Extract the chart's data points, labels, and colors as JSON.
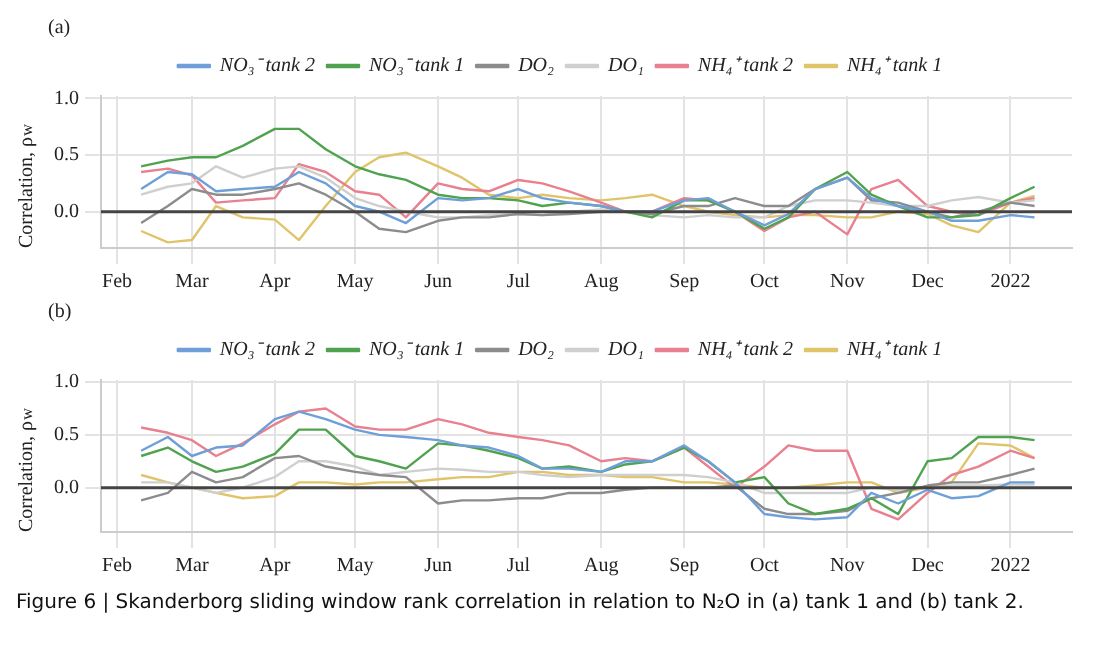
{
  "chart_data": [
    {
      "type": "line",
      "title": "(a)",
      "ylabel": "Correlation, ρ$_{w}$",
      "legend": "top",
      "grid": true,
      "marker": "none",
      "x": [
        "2021-02-10",
        "2021-02-20",
        "2021-03-01",
        "2021-03-10",
        "2021-03-20",
        "2021-04-01",
        "2021-04-10",
        "2021-04-20",
        "2021-05-01",
        "2021-05-10",
        "2021-05-20",
        "2021-06-01",
        "2021-06-10",
        "2021-06-20",
        "2021-07-01",
        "2021-07-10",
        "2021-07-20",
        "2021-08-01",
        "2021-08-10",
        "2021-08-20",
        "2021-09-01",
        "2021-09-10",
        "2021-09-20",
        "2021-10-01",
        "2021-10-10",
        "2021-10-20",
        "2021-11-01",
        "2021-11-10",
        "2021-11-20",
        "2021-12-01",
        "2021-12-10",
        "2021-12-20",
        "2022-01-01",
        "2022-01-10"
      ],
      "xlim": [
        "2021-01-26",
        "2022-01-24"
      ],
      "xticks": [
        {
          "value": "2021-02-01",
          "label": "Feb"
        },
        {
          "value": "2021-03-01",
          "label": "Mar"
        },
        {
          "value": "2021-04-01",
          "label": "Apr"
        },
        {
          "value": "2021-05-01",
          "label": "May"
        },
        {
          "value": "2021-06-01",
          "label": "Jun"
        },
        {
          "value": "2021-07-01",
          "label": "Jul"
        },
        {
          "value": "2021-08-01",
          "label": "Aug"
        },
        {
          "value": "2021-09-01",
          "label": "Sep"
        },
        {
          "value": "2021-10-01",
          "label": "Oct"
        },
        {
          "value": "2021-11-01",
          "label": "Nov"
        },
        {
          "value": "2021-12-01",
          "label": "Dec"
        },
        {
          "value": "2022-01-01",
          "label": "2022"
        }
      ],
      "ylim": [
        -0.32,
        1.02
      ],
      "yticks": [
        {
          "value": 0,
          "label": "0.0"
        },
        {
          "value": 0.5,
          "label": "0.5"
        },
        {
          "value": 1,
          "label": "1.0"
        }
      ],
      "ref_lines": [
        {
          "axis": "y",
          "value": 0,
          "color": "#444444"
        }
      ],
      "series": [
        {
          "name": "NO₃⁻ tank 2",
          "color": "#6f9fd8",
          "values": [
            0.2,
            0.35,
            0.33,
            0.18,
            0.2,
            0.22,
            0.35,
            0.25,
            0.05,
            0,
            -0.1,
            0.12,
            0.1,
            0.12,
            0.2,
            0.12,
            0.08,
            0.05,
            0,
            0,
            0.1,
            0.12,
            0,
            -0.12,
            -0.02,
            0.2,
            0.3,
            0.12,
            0.05,
            0,
            -0.08,
            -0.08,
            -0.03,
            -0.05
          ]
        },
        {
          "name": "NO₃⁻ tank 1",
          "color": "#4fa34f",
          "values": [
            0.4,
            0.45,
            0.48,
            0.48,
            0.58,
            0.73,
            0.73,
            0.55,
            0.4,
            0.33,
            0.28,
            0.15,
            0.12,
            0.12,
            0.1,
            0.05,
            0.08,
            0.05,
            0,
            -0.05,
            0.1,
            0.1,
            0,
            -0.15,
            -0.05,
            0.2,
            0.35,
            0.15,
            0.05,
            -0.05,
            -0.05,
            -0.03,
            0.12,
            0.22
          ]
        },
        {
          "name": "DO₂",
          "color": "#8c8c8c",
          "values": [
            -0.1,
            0.05,
            0.2,
            0.15,
            0.15,
            0.2,
            0.25,
            0.15,
            0,
            -0.15,
            -0.18,
            -0.08,
            -0.05,
            -0.05,
            -0.02,
            -0.03,
            -0.02,
            0,
            0,
            -0.02,
            0.05,
            0.05,
            0.12,
            0.05,
            0.05,
            0.2,
            0.3,
            0.1,
            0.08,
            0,
            -0.05,
            0,
            0.08,
            0.05
          ]
        },
        {
          "name": "DO₁",
          "color": "#cfcfcf",
          "values": [
            0.15,
            0.22,
            0.25,
            0.4,
            0.3,
            0.38,
            0.4,
            0.3,
            0.12,
            0.05,
            0,
            -0.05,
            -0.05,
            -0.03,
            -0.02,
            -0.03,
            0,
            0.02,
            0,
            -0.03,
            -0.05,
            -0.03,
            -0.05,
            -0.05,
            0.05,
            0.1,
            0.1,
            0.08,
            0.05,
            0.05,
            0.1,
            0.13,
            0.08,
            0.1
          ]
        },
        {
          "name": "NH₄⁺ tank 2",
          "color": "#e8808f",
          "values": [
            0.35,
            0.38,
            0.32,
            0.08,
            0.1,
            0.12,
            0.42,
            0.35,
            0.18,
            0.15,
            -0.05,
            0.25,
            0.2,
            0.18,
            0.28,
            0.25,
            0.18,
            0.08,
            0,
            0,
            0.12,
            0.1,
            0,
            -0.17,
            -0.05,
            0,
            -0.2,
            0.2,
            0.28,
            0.05,
            0,
            -0.03,
            0.08,
            0.12
          ]
        },
        {
          "name": "NH₄⁺ tank 1",
          "color": "#e0c46a",
          "values": [
            -0.17,
            -0.27,
            -0.25,
            0.05,
            -0.05,
            -0.07,
            -0.25,
            0.05,
            0.35,
            0.48,
            0.52,
            0.4,
            0.3,
            0.15,
            0.12,
            0.15,
            0.12,
            0.1,
            0.12,
            0.15,
            0.05,
            0,
            -0.03,
            -0.05,
            -0.03,
            -0.03,
            -0.05,
            -0.05,
            0,
            -0.02,
            -0.12,
            -0.18,
            0.08,
            0.14
          ]
        }
      ]
    },
    {
      "type": "line",
      "title": "(b)",
      "ylabel": "Correlation, ρ$_{w}$",
      "legend": "top",
      "grid": true,
      "marker": "none",
      "x": [
        "2021-02-10",
        "2021-02-20",
        "2021-03-01",
        "2021-03-10",
        "2021-03-20",
        "2021-04-01",
        "2021-04-10",
        "2021-04-20",
        "2021-05-01",
        "2021-05-10",
        "2021-05-20",
        "2021-06-01",
        "2021-06-10",
        "2021-06-20",
        "2021-07-01",
        "2021-07-10",
        "2021-07-20",
        "2021-08-01",
        "2021-08-10",
        "2021-08-20",
        "2021-09-01",
        "2021-09-10",
        "2021-09-20",
        "2021-10-01",
        "2021-10-10",
        "2021-10-20",
        "2021-11-01",
        "2021-11-10",
        "2021-11-20",
        "2021-12-01",
        "2021-12-10",
        "2021-12-20",
        "2022-01-01",
        "2022-01-10"
      ],
      "xlim": [
        "2021-01-26",
        "2022-01-24"
      ],
      "xticks": [
        {
          "value": "2021-02-01",
          "label": "Feb"
        },
        {
          "value": "2021-03-01",
          "label": "Mar"
        },
        {
          "value": "2021-04-01",
          "label": "Apr"
        },
        {
          "value": "2021-05-01",
          "label": "May"
        },
        {
          "value": "2021-06-01",
          "label": "Jun"
        },
        {
          "value": "2021-07-01",
          "label": "Jul"
        },
        {
          "value": "2021-08-01",
          "label": "Aug"
        },
        {
          "value": "2021-09-01",
          "label": "Sep"
        },
        {
          "value": "2021-10-01",
          "label": "Oct"
        },
        {
          "value": "2021-11-01",
          "label": "Nov"
        },
        {
          "value": "2021-12-01",
          "label": "Dec"
        },
        {
          "value": "2022-01-01",
          "label": "2022"
        }
      ],
      "ylim": [
        -0.42,
        1.02
      ],
      "yticks": [
        {
          "value": 0,
          "label": "0.0"
        },
        {
          "value": 0.5,
          "label": "0.5"
        },
        {
          "value": 1,
          "label": "1.0"
        }
      ],
      "ref_lines": [
        {
          "axis": "y",
          "value": 0,
          "color": "#444444"
        }
      ],
      "annotations": [
        "Figure 6 | Skanderborg sliding window rank correlation in relation to N₂O in (a) tank 1 and (b) tank 2."
      ],
      "series": [
        {
          "name": "NO₃⁻ tank 2",
          "color": "#6f9fd8",
          "values": [
            0.35,
            0.48,
            0.3,
            0.38,
            0.4,
            0.65,
            0.72,
            0.65,
            0.55,
            0.5,
            0.48,
            0.45,
            0.4,
            0.38,
            0.3,
            0.18,
            0.18,
            0.15,
            0.25,
            0.25,
            0.4,
            0.25,
            0.05,
            -0.25,
            -0.28,
            -0.3,
            -0.28,
            -0.05,
            -0.15,
            -0.02,
            -0.1,
            -0.08,
            0.05,
            0.05
          ]
        },
        {
          "name": "NO₃⁻ tank 1",
          "color": "#4fa34f",
          "values": [
            0.3,
            0.38,
            0.25,
            0.15,
            0.2,
            0.32,
            0.55,
            0.55,
            0.3,
            0.25,
            0.18,
            0.42,
            0.4,
            0.35,
            0.28,
            0.18,
            0.2,
            0.15,
            0.22,
            0.25,
            0.38,
            0.25,
            0.05,
            0.1,
            -0.15,
            -0.25,
            -0.2,
            -0.1,
            -0.25,
            0.25,
            0.28,
            0.48,
            0.48,
            0.45
          ]
        },
        {
          "name": "DO₂",
          "color": "#8c8c8c",
          "values": [
            -0.12,
            -0.05,
            0.15,
            0.05,
            0.1,
            0.28,
            0.3,
            0.2,
            0.15,
            0.12,
            0.1,
            -0.15,
            -0.12,
            -0.12,
            -0.1,
            -0.1,
            -0.05,
            -0.05,
            -0.02,
            0,
            0,
            0,
            0.02,
            -0.2,
            -0.25,
            -0.25,
            -0.22,
            -0.1,
            -0.05,
            0.02,
            0.05,
            0.05,
            0.12,
            0.18
          ]
        },
        {
          "name": "DO₁",
          "color": "#cfcfcf",
          "values": [
            0.05,
            0.05,
            0,
            -0.05,
            0,
            0.1,
            0.25,
            0.25,
            0.2,
            0.12,
            0.15,
            0.18,
            0.17,
            0.15,
            0.15,
            0.12,
            0.1,
            0.12,
            0.12,
            0.12,
            0.12,
            0.1,
            0.05,
            -0.05,
            -0.05,
            -0.05,
            -0.05,
            0,
            -0.02,
            0,
            0.02,
            0.02,
            0.03,
            0.03
          ]
        },
        {
          "name": "NH₄⁺ tank 2",
          "color": "#e8808f",
          "values": [
            0.57,
            0.52,
            0.45,
            0.3,
            0.42,
            0.6,
            0.72,
            0.75,
            0.58,
            0.55,
            0.55,
            0.65,
            0.6,
            0.52,
            0.48,
            0.45,
            0.4,
            0.25,
            0.28,
            0.25,
            0.38,
            0.2,
            0,
            0.2,
            0.4,
            0.35,
            0.35,
            -0.2,
            -0.3,
            -0.05,
            0.12,
            0.2,
            0.35,
            0.28
          ]
        },
        {
          "name": "NH₄⁺ tank 1",
          "color": "#e0c46a",
          "values": [
            0.12,
            0.05,
            0,
            -0.05,
            -0.1,
            -0.08,
            0.05,
            0.05,
            0.03,
            0.05,
            0.05,
            0.08,
            0.1,
            0.1,
            0.15,
            0.15,
            0.12,
            0.12,
            0.1,
            0.1,
            0.05,
            0.05,
            0.03,
            0,
            0,
            0.02,
            0.05,
            0.05,
            -0.05,
            0,
            0.05,
            0.42,
            0.4,
            0.28
          ]
        }
      ]
    }
  ]
}
